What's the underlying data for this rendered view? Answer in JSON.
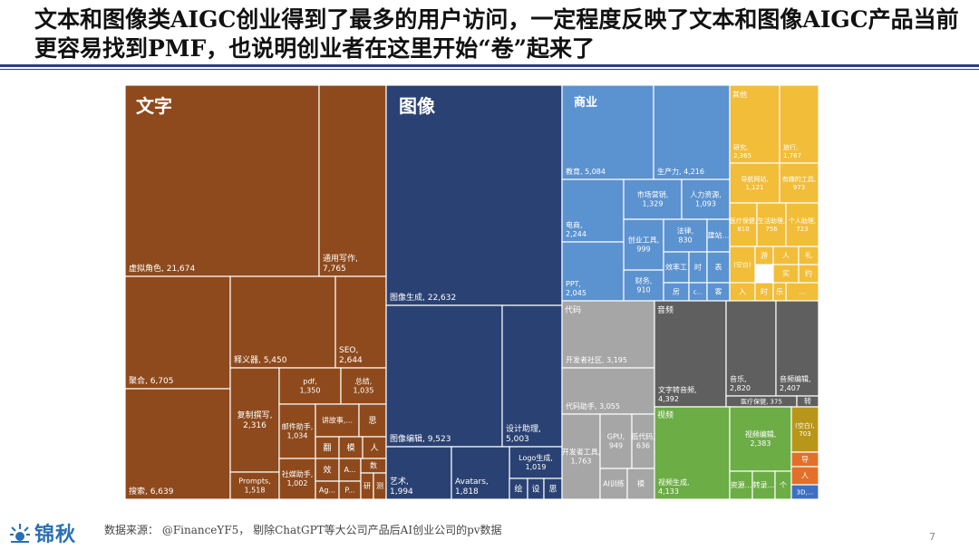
{
  "page": {
    "title": "文本和图像类AIGC创业得到了最多的用户访问，一定程度反映了文本和图像AIGC产品当前更容易找到PMF，也说明创业者在这里开始“卷”起来了",
    "logo_text": "锦秋",
    "source": "数据来源：  @FinanceYF5， 剔除ChatGPT等大公司产品后AI创业公司的pv数据",
    "page_number": "7"
  },
  "chart_data": {
    "type": "treemap",
    "categories": [
      {
        "name": "文字",
        "color": "#8e4a1c",
        "items": [
          {
            "label": "虚拟角色, 21,674",
            "value": 21674
          },
          {
            "label": "通用写作, 7,765",
            "value": 7765
          },
          {
            "label": "聚合, 6,705",
            "value": 6705
          },
          {
            "label": "释义器, 5,450",
            "value": 5450
          },
          {
            "label": "SEO, 2,644",
            "value": 2644
          },
          {
            "label": "搜索, 6,639",
            "value": 6639
          },
          {
            "label": "复制撰写, 2,316",
            "value": 2316
          },
          {
            "label": "pdf, 1,350",
            "value": 1350
          },
          {
            "label": "总结, 1,035",
            "value": 1035
          },
          {
            "label": "邮件助手, 1,034",
            "value": 1034
          },
          {
            "label": "讲故事,...",
            "value": null
          },
          {
            "label": "思",
            "value": null
          },
          {
            "label": "Prompts, 1,518",
            "value": 1518
          },
          {
            "label": "社媒助手, 1,002",
            "value": 1002
          },
          {
            "label": "翻",
            "value": null
          },
          {
            "label": "模",
            "value": null
          },
          {
            "label": "人",
            "value": null
          },
          {
            "label": "效",
            "value": null
          },
          {
            "label": "A...",
            "value": null
          },
          {
            "label": "数",
            "value": null
          },
          {
            "label": "Ag...",
            "value": null
          },
          {
            "label": "P...",
            "value": null
          },
          {
            "label": "研",
            "value": null
          },
          {
            "label": "测",
            "value": null
          }
        ]
      },
      {
        "name": "图像",
        "color": "#2a4173",
        "items": [
          {
            "label": "图像生成, 22,632",
            "value": 22632
          },
          {
            "label": "图像编辑, 9,523",
            "value": 9523
          },
          {
            "label": "设计助理, 5,003",
            "value": 5003
          },
          {
            "label": "Logo生成, 1,019",
            "value": 1019
          },
          {
            "label": "艺术, 1,994",
            "value": 1994
          },
          {
            "label": "Avatars, 1,818",
            "value": 1818
          },
          {
            "label": "绘",
            "value": null
          },
          {
            "label": "设",
            "value": null
          },
          {
            "label": "思",
            "value": null
          }
        ]
      },
      {
        "name": "商业",
        "color": "#5b92d0",
        "items": [
          {
            "label": "教育, 5,084",
            "value": 5084
          },
          {
            "label": "生产力, 4,216",
            "value": 4216
          },
          {
            "label": "电商, 2,244",
            "value": 2244
          },
          {
            "label": "市场营销, 1,329",
            "value": 1329
          },
          {
            "label": "人力资源, 1,093",
            "value": 1093
          },
          {
            "label": "创业工具, 999",
            "value": 999
          },
          {
            "label": "法律, 830",
            "value": 830
          },
          {
            "label": "建站...",
            "value": null
          },
          {
            "label": "PPT, 2,045",
            "value": 2045
          },
          {
            "label": "财务, 910",
            "value": 910
          },
          {
            "label": "效率工",
            "value": null
          },
          {
            "label": "时",
            "value": null
          },
          {
            "label": "表",
            "value": null
          },
          {
            "label": "房",
            "value": null
          },
          {
            "label": "c...",
            "value": null
          },
          {
            "label": "客",
            "value": null
          }
        ]
      },
      {
        "name": "其他",
        "color": "#f2bd38",
        "items": [
          {
            "label": "研究, 2,365",
            "value": 2365
          },
          {
            "label": "旅行, 1,767",
            "value": 1767
          },
          {
            "label": "导航网站, 1,121",
            "value": 1121
          },
          {
            "label": "有趣的工具, 973",
            "value": 973
          },
          {
            "label": "医疗保健, 810",
            "value": 810
          },
          {
            "label": "生活助理, 756",
            "value": 756
          },
          {
            "label": "个人助理, 723",
            "value": 723
          },
          {
            "label": "(空白)",
            "value": null
          },
          {
            "label": "游",
            "value": null
          },
          {
            "label": "人",
            "value": null
          },
          {
            "label": "礼",
            "value": null
          },
          {
            "label": "约",
            "value": null
          },
          {
            "label": "实",
            "value": null
          },
          {
            "label": "...",
            "value": null
          },
          {
            "label": "入",
            "value": null
          },
          {
            "label": "时",
            "value": null
          },
          {
            "label": "乐",
            "value": null
          }
        ]
      },
      {
        "name": "代码",
        "color": "#a6a6a6",
        "items": [
          {
            "label": "开发者社区, 3,195",
            "value": 3195
          },
          {
            "label": "代码助手, 3,055",
            "value": 3055
          },
          {
            "label": "开发者工具, 1,763",
            "value": 1763
          },
          {
            "label": "GPU, 949",
            "value": 949
          },
          {
            "label": "低代码, 636",
            "value": 636
          },
          {
            "label": "AI训练",
            "value": null
          },
          {
            "label": "模",
            "value": null
          }
        ]
      },
      {
        "name": "音频",
        "color": "#5f5f5f",
        "items": [
          {
            "label": "文字转音频, 4,392",
            "value": 4392
          },
          {
            "label": "音乐, 2,820",
            "value": 2820
          },
          {
            "label": "音频编辑, 2,407",
            "value": 2407
          },
          {
            "label": "医疗保健, 375",
            "value": 375
          },
          {
            "label": "转",
            "value": null
          }
        ]
      },
      {
        "name": "视频",
        "color": "#6cad45",
        "items": [
          {
            "label": "视频生成, 4,133",
            "value": 4133
          },
          {
            "label": "视频编辑, 2,383",
            "value": 2383
          },
          {
            "label": "资源...",
            "value": null
          },
          {
            "label": "转录...",
            "value": null
          },
          {
            "label": "个",
            "value": null
          }
        ]
      },
      {
        "name": "",
        "color": "#b8961a",
        "items": [
          {
            "label": "(空白), 703",
            "value": 703
          }
        ]
      },
      {
        "name": "",
        "color": "#e2702a",
        "items": [
          {
            "label": "导",
            "value": null
          },
          {
            "label": "人",
            "value": null
          }
        ]
      },
      {
        "name": "",
        "color": "#3f6fc3",
        "items": [
          {
            "label": "3D,...",
            "value": null
          }
        ]
      }
    ]
  }
}
